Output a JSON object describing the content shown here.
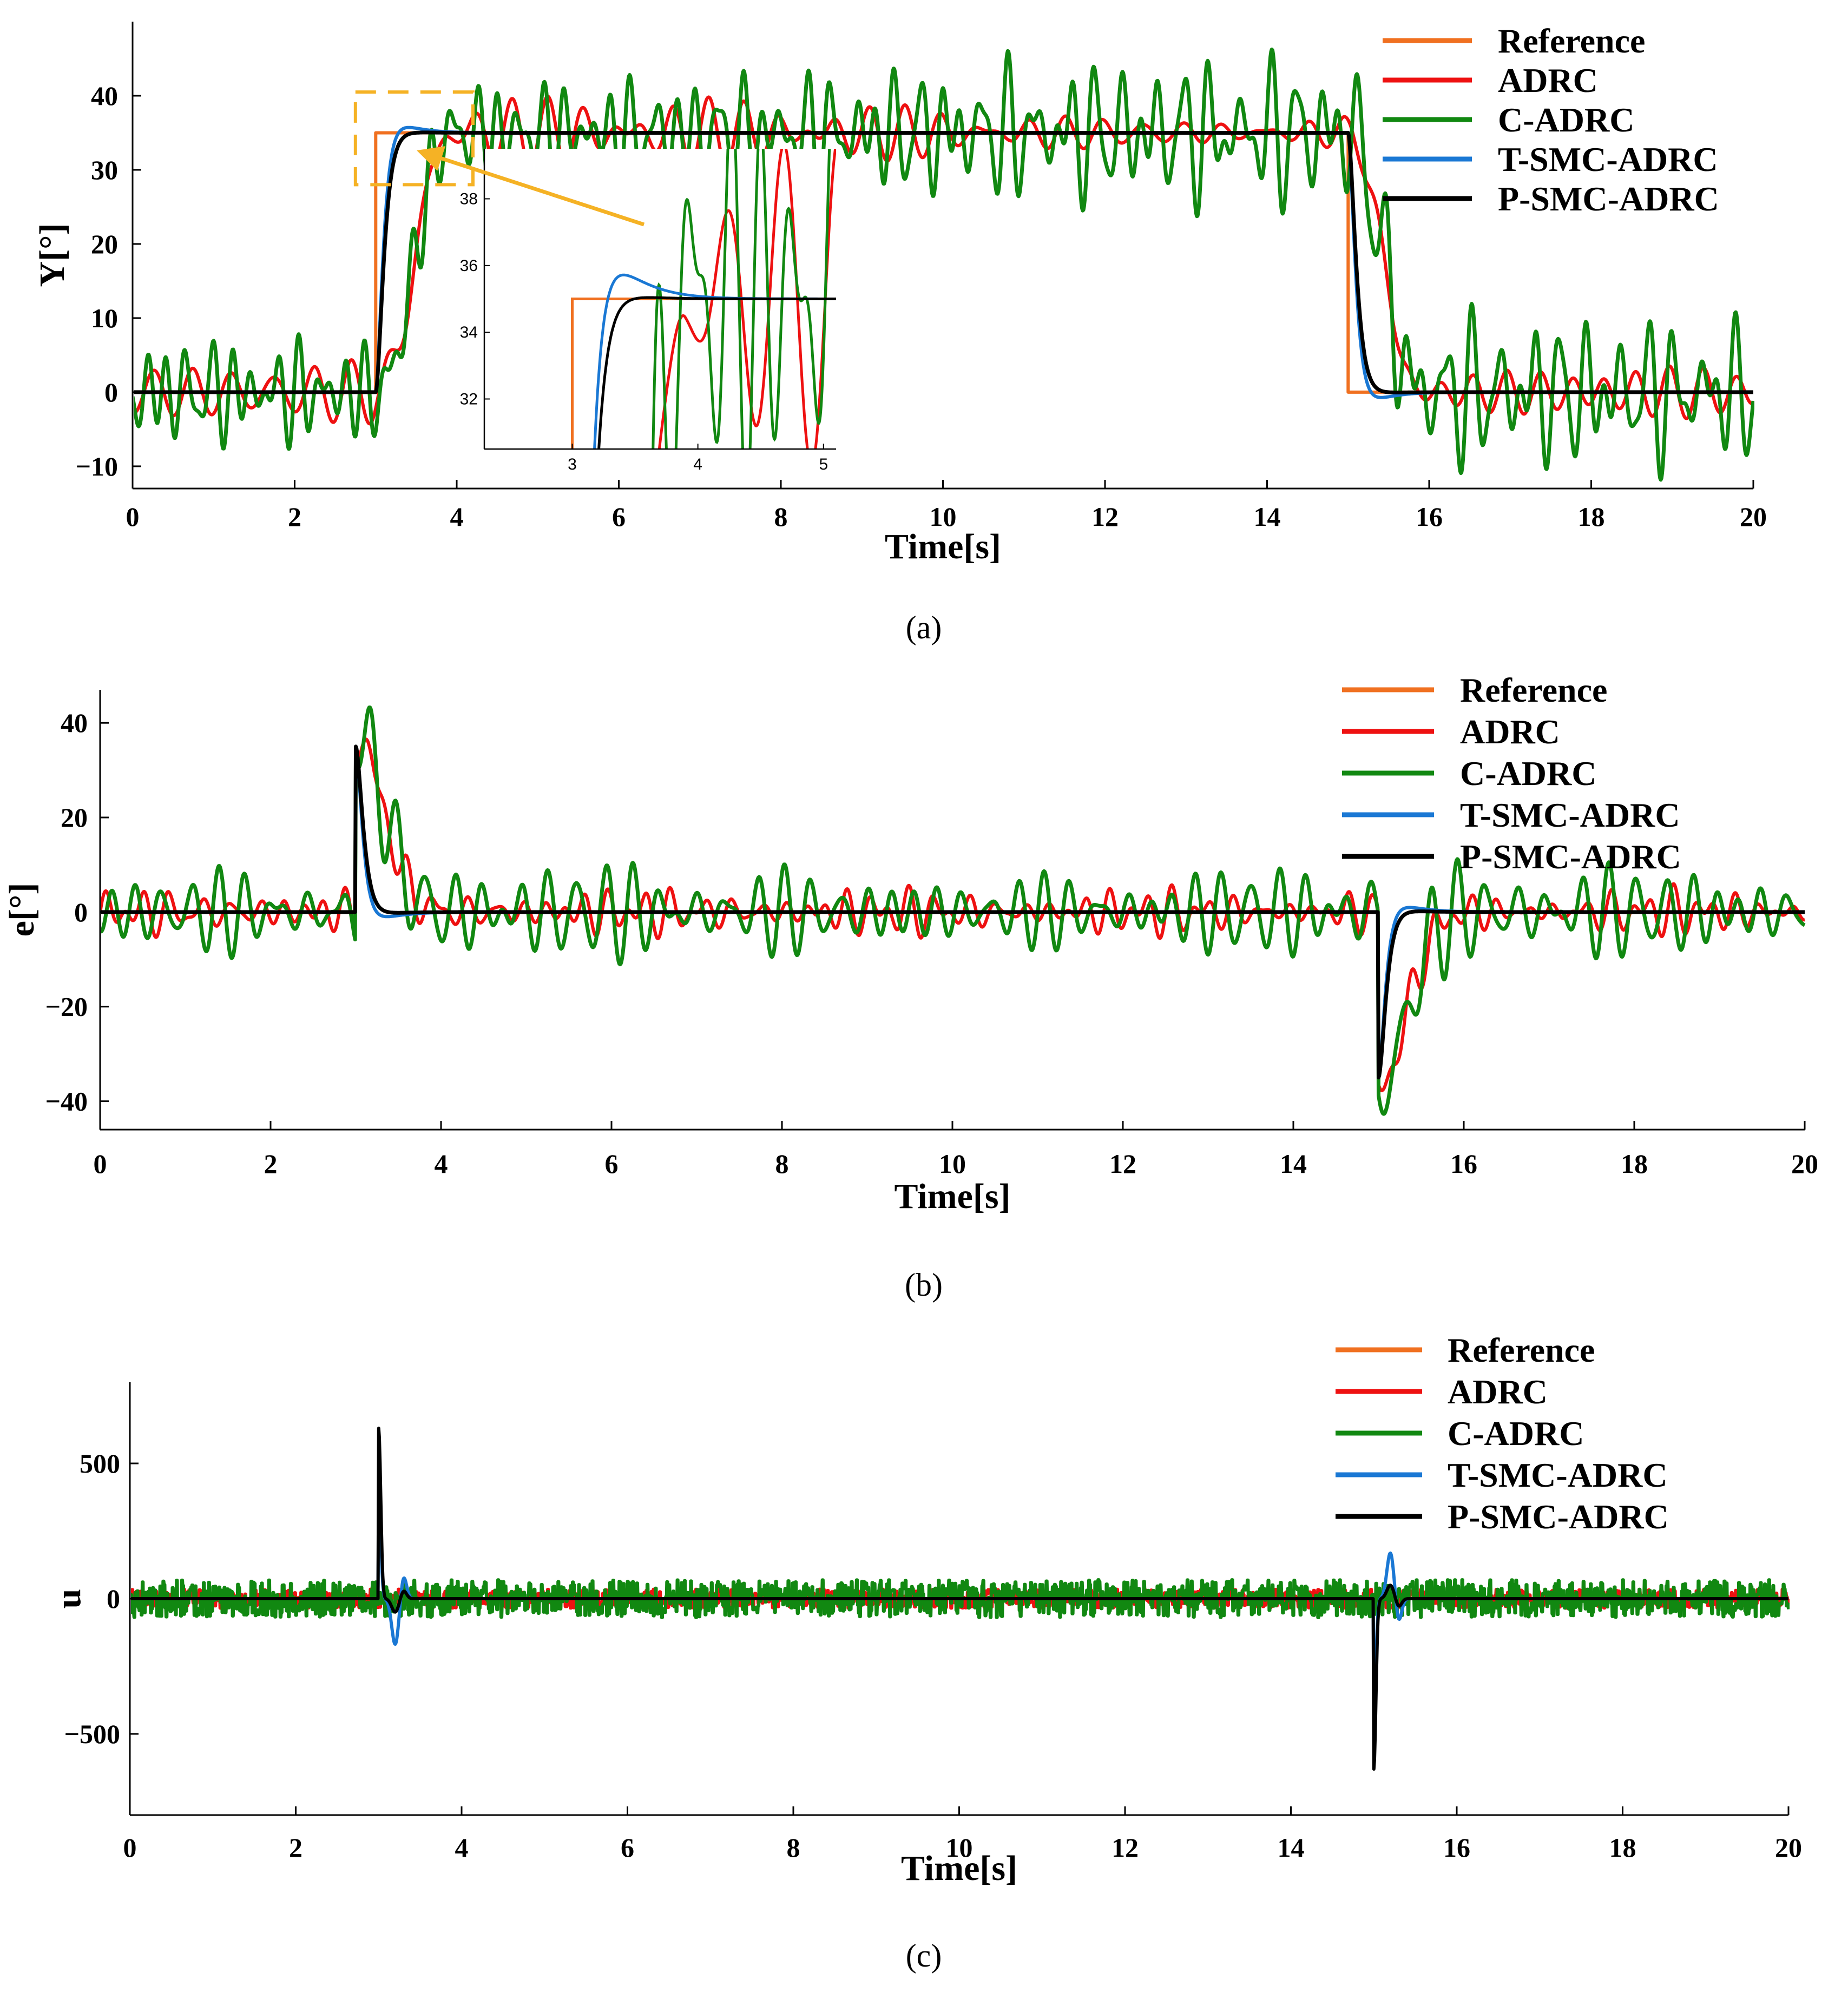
{
  "chart_data": [
    {
      "type": "line",
      "panel": "a",
      "caption": "(a)",
      "xlabel": "Time[s]",
      "ylabel": "Y[°]",
      "xlim": [
        0,
        20
      ],
      "ylim": [
        -13,
        50
      ],
      "xticks": [
        0,
        2,
        4,
        6,
        8,
        10,
        12,
        14,
        16,
        18,
        20
      ],
      "yticks": [
        -10,
        0,
        10,
        20,
        30,
        40
      ],
      "ytick_labels": [
        "−10",
        "0",
        "10",
        "20",
        "30",
        "40"
      ],
      "legend_position": "top-right",
      "series": [
        {
          "name": "Reference",
          "color": "#f07020",
          "kind": "reference",
          "x": [
            0,
            3,
            3,
            15,
            15,
            20
          ],
          "y": [
            0,
            0,
            35,
            35,
            0,
            0
          ]
        },
        {
          "name": "ADRC",
          "color": "#ee1111",
          "kind": "adrc",
          "base": 0,
          "step": 35,
          "amp": 2.2,
          "freq": 3.3
        },
        {
          "name": "C-ADRC",
          "color": "#118811",
          "kind": "cadrc",
          "base": 0,
          "step": 35,
          "amp": 4.5,
          "freq": 3.6
        },
        {
          "name": "T-SMC-ADRC",
          "color": "#1a78d4",
          "kind": "tsmc",
          "base": 0,
          "step": 35,
          "overshoot": 1.4
        },
        {
          "name": "P-SMC-ADRC",
          "color": "#000000",
          "kind": "psmc",
          "base": 0,
          "step": 35,
          "overshoot": 0.3
        }
      ],
      "inset": {
        "xlim": [
          2.3,
          5.1
        ],
        "ylim": [
          30.5,
          39.5
        ],
        "xticks": [
          3,
          4,
          5
        ],
        "yticks": [
          32,
          34,
          36,
          38
        ],
        "highlight": {
          "xlim": [
            2.75,
            4.2
          ],
          "ylim": [
            28,
            40.5
          ],
          "color": "#f5b225"
        }
      }
    },
    {
      "type": "line",
      "panel": "b",
      "caption": "(b)",
      "xlabel": "Time[s]",
      "ylabel": "e[°]",
      "xlim": [
        0,
        20
      ],
      "ylim": [
        -46,
        47
      ],
      "xticks": [
        0,
        2,
        4,
        6,
        8,
        10,
        12,
        14,
        16,
        18,
        20
      ],
      "yticks": [
        -40,
        -20,
        0,
        20,
        40
      ],
      "ytick_labels": [
        "−40",
        "−20",
        "0",
        "20",
        "40"
      ],
      "legend_position": "top-right",
      "series": [
        {
          "name": "Reference",
          "color": "#f07020",
          "kind": "none"
        },
        {
          "name": "ADRC",
          "color": "#ee1111",
          "kind": "adrc",
          "peak": 37,
          "amp": 2.2,
          "freq": 3.3
        },
        {
          "name": "C-ADRC",
          "color": "#118811",
          "kind": "cadrc",
          "peak": 38,
          "amp": 4.5,
          "freq": 3.6
        },
        {
          "name": "T-SMC-ADRC",
          "color": "#1a78d4",
          "kind": "tsmc",
          "peak": 35
        },
        {
          "name": "P-SMC-ADRC",
          "color": "#000000",
          "kind": "psmc",
          "peak": 35
        }
      ]
    },
    {
      "type": "line",
      "panel": "c",
      "caption": "(c)",
      "xlabel": "Time[s]",
      "ylabel": "u",
      "xlim": [
        0,
        20
      ],
      "ylim": [
        -800,
        800
      ],
      "xticks": [
        0,
        2,
        4,
        6,
        8,
        10,
        12,
        14,
        16,
        18,
        20
      ],
      "yticks": [
        -500,
        0,
        500
      ],
      "ytick_labels": [
        "−500",
        "0",
        "500"
      ],
      "legend_position": "top-right",
      "series": [
        {
          "name": "Reference",
          "color": "#f07020",
          "kind": "none"
        },
        {
          "name": "ADRC",
          "color": "#ee1111",
          "kind": "noise",
          "amp": 35
        },
        {
          "name": "C-ADRC",
          "color": "#118811",
          "kind": "noise",
          "amp": 70
        },
        {
          "name": "T-SMC-ADRC",
          "color": "#1a78d4",
          "kind": "spike",
          "peak": 400,
          "under": -170,
          "rebound": 170
        },
        {
          "name": "P-SMC-ADRC",
          "color": "#000000",
          "kind": "spike",
          "peak": 630,
          "under": -50,
          "rebound": 60
        }
      ]
    }
  ]
}
